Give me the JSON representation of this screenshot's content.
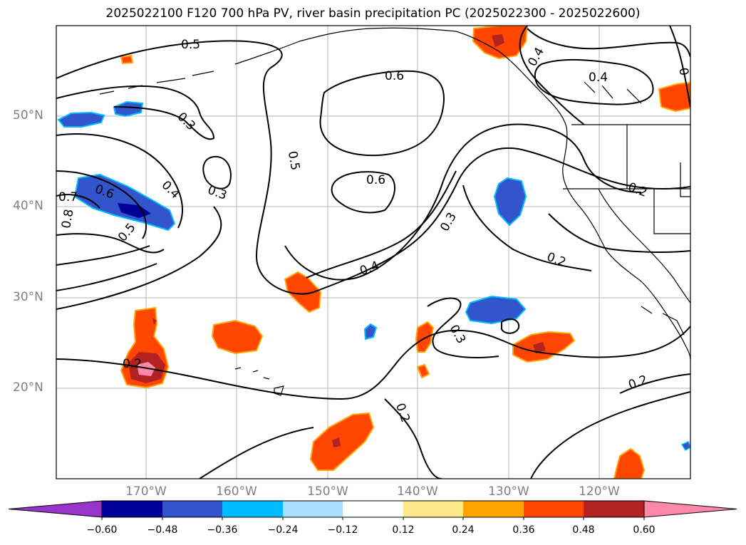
{
  "title": "2025022100 F120 700 hPa PV, river basin precipitation PC (2025022300 - 2025022600)",
  "lat_labels": [
    "50°N",
    "40°N",
    "30°N",
    "20°N"
  ],
  "lon_labels": [
    "170°W",
    "160°W",
    "150°W",
    "140°W",
    "130°W",
    "120°W"
  ],
  "colorbar": {
    "ticks": [
      "−0.60",
      "−0.48",
      "−0.36",
      "−0.24",
      "−0.12",
      "0.12",
      "0.24",
      "0.36",
      "0.48",
      "0.60"
    ],
    "colors": [
      "#9933cc",
      "#000099",
      "#3355cc",
      "#00bbff",
      "#aaddff",
      "#ffffff",
      "#ffe98a",
      "#ffa500",
      "#ff4500",
      "#b22222",
      "#ff88aa"
    ]
  },
  "contour_labels": [
    "0.5",
    "0.6",
    "0.4",
    "0.4",
    "0.3",
    "0.5",
    "0.6",
    "0.4",
    "0.3",
    "0.6",
    "0.7",
    "0.8",
    "0.5",
    "0.3",
    "0.4",
    "0.2",
    "0.2",
    "0.3",
    "0.2",
    "0.2",
    "0.2",
    "0"
  ]
}
